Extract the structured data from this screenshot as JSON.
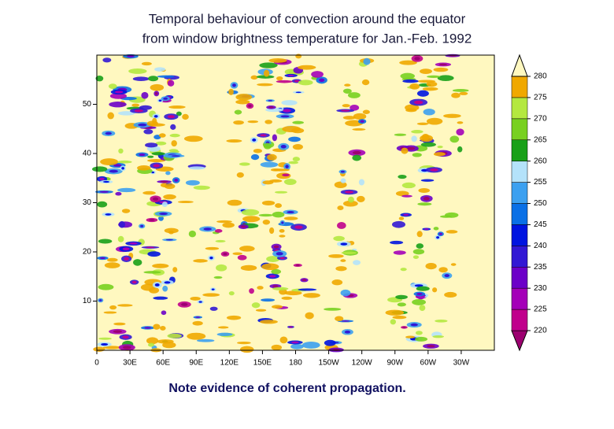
{
  "chart_data": {
    "type": "hovmoller",
    "title": [
      "Temporal behaviour of convection around the equator",
      "from window brightness temperature for Jan.-Feb. 1992"
    ],
    "note": "Note evidence of coherent propagation.",
    "xlim": [
      0,
      360
    ],
    "xticks": [
      0,
      {
        "value": 30,
        "label": "30E"
      },
      {
        "value": 60,
        "label": "60E"
      },
      {
        "value": 90,
        "label": "90E"
      },
      {
        "value": 120,
        "label": "120E"
      },
      {
        "value": 150,
        "label": "150E"
      },
      180,
      {
        "value": 210,
        "label": "150W"
      },
      {
        "value": 240,
        "label": "120W"
      },
      {
        "value": 270,
        "label": "90W"
      },
      {
        "value": 300,
        "label": "60W"
      },
      {
        "value": 330,
        "label": "30W"
      }
    ],
    "ylim": [
      0,
      60
    ],
    "yticks": [
      10,
      20,
      30,
      40,
      50
    ],
    "colorbar": {
      "levels": [
        220,
        225,
        230,
        235,
        240,
        245,
        250,
        255,
        260,
        265,
        270,
        275,
        280
      ],
      "colors": [
        "#9c0070",
        "#c0008c",
        "#a400b8",
        "#6c00c8",
        "#3218d4",
        "#0014e0",
        "#0a70e6",
        "#3ca0f0",
        "#b4e2fa",
        "#18a018",
        "#78d020",
        "#b4e840",
        "#f0a800",
        "#fff8c0"
      ]
    }
  }
}
